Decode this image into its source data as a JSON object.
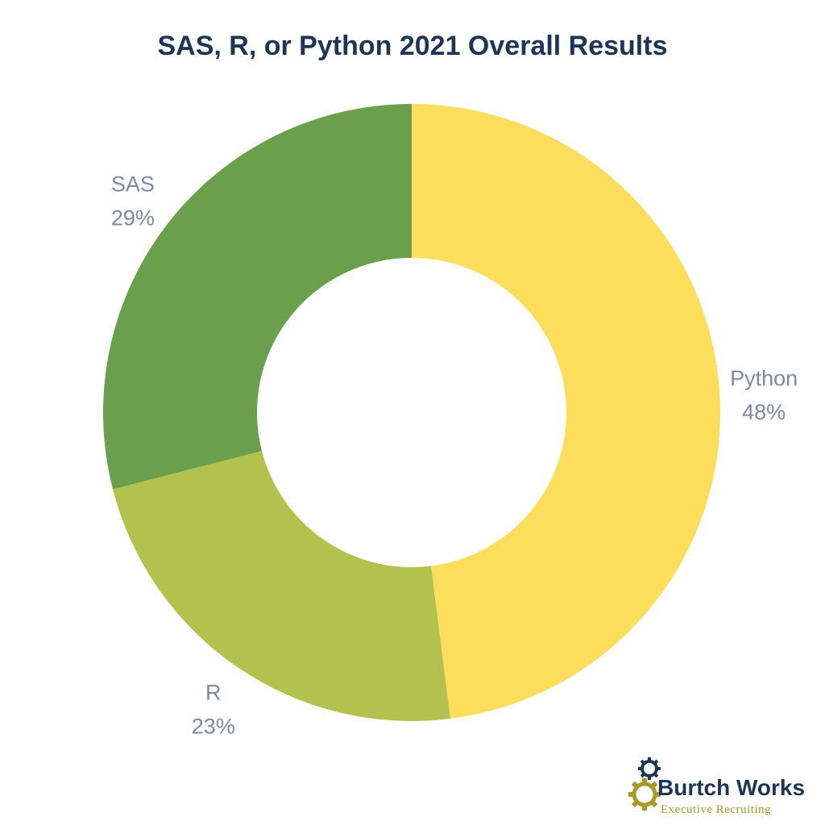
{
  "chart_data": {
    "type": "pie",
    "title": "SAS, R, or Python 2021 Overall Results",
    "donut": true,
    "categories": [
      "Python",
      "R",
      "SAS"
    ],
    "values": [
      48,
      23,
      29
    ],
    "value_labels": [
      "48%",
      "23%",
      "29%"
    ],
    "colors": [
      "#fcdd5c",
      "#b3c14f",
      "#6aa04b"
    ],
    "start": "12 o'clock, clockwise"
  },
  "logo": {
    "brand": "Burtch Works",
    "tagline": "Executive Recruiting",
    "colors": {
      "text": "#1d3557",
      "gear_blue": "#1d3557",
      "gear_gold": "#a89a2a"
    }
  }
}
